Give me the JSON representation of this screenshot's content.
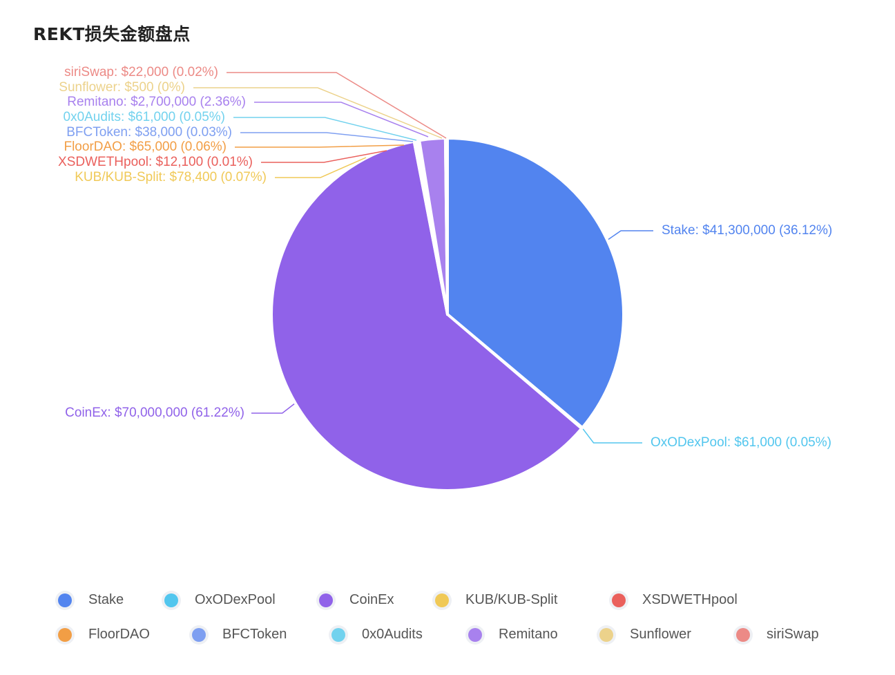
{
  "chart_data": {
    "type": "pie",
    "title": "REKT损失金额盘点",
    "slices": [
      {
        "name": "Stake",
        "value": 41300000,
        "label": "Stake: $41,300,000 (36.12%)",
        "color": "#5284ef"
      },
      {
        "name": "OxODexPool",
        "value": 61000,
        "label": "OxODexPool: $61,000 (0.05%)",
        "color": "#52c6ee"
      },
      {
        "name": "CoinEx",
        "value": 70000000,
        "label": "CoinEx: $70,000,000 (61.22%)",
        "color": "#9062e9"
      },
      {
        "name": "KUB/KUB-Split",
        "value": 78400,
        "label": "KUB/KUB-Split: $78,400 (0.07%)",
        "color": "#f0c957"
      },
      {
        "name": "XSDWETHpool",
        "value": 12100,
        "label": "XSDWETHpool: $12,100 (0.01%)",
        "color": "#ea605c"
      },
      {
        "name": "FloorDAO",
        "value": 65000,
        "label": "FloorDAO: $65,000 (0.06%)",
        "color": "#f29e45"
      },
      {
        "name": "BFCToken",
        "value": 38000,
        "label": "BFCToken: $38,000 (0.03%)",
        "color": "#7e9ff1"
      },
      {
        "name": "0x0Audits",
        "value": 61000,
        "label": "0x0Audits: $61,000 (0.05%)",
        "color": "#72d2ee"
      },
      {
        "name": "Remitano",
        "value": 2700000,
        "label": "Remitano: $2,700,000 (2.36%)",
        "color": "#a881ee"
      },
      {
        "name": "Sunflower",
        "value": 500,
        "label": "Sunflower: $500 (0%)",
        "color": "#ecd28b"
      },
      {
        "name": "siriSwap",
        "value": 22000,
        "label": "siriSwap: $22,000 (0.02%)",
        "color": "#ec8a86"
      }
    ],
    "legend_position": "bottom"
  },
  "legend": [
    {
      "label": "Stake",
      "color": "#5284ef"
    },
    {
      "label": "OxODexPool",
      "color": "#52c6ee"
    },
    {
      "label": "CoinEx",
      "color": "#9062e9"
    },
    {
      "label": "KUB/KUB-Split",
      "color": "#f0c957"
    },
    {
      "label": "XSDWETHpool",
      "color": "#ea605c"
    },
    {
      "label": "FloorDAO",
      "color": "#f29e45"
    },
    {
      "label": "BFCToken",
      "color": "#7e9ff1"
    },
    {
      "label": "0x0Audits",
      "color": "#72d2ee"
    },
    {
      "label": "Remitano",
      "color": "#a881ee"
    },
    {
      "label": "Sunflower",
      "color": "#ecd28b"
    },
    {
      "label": "siriSwap",
      "color": "#ec8a86"
    }
  ]
}
